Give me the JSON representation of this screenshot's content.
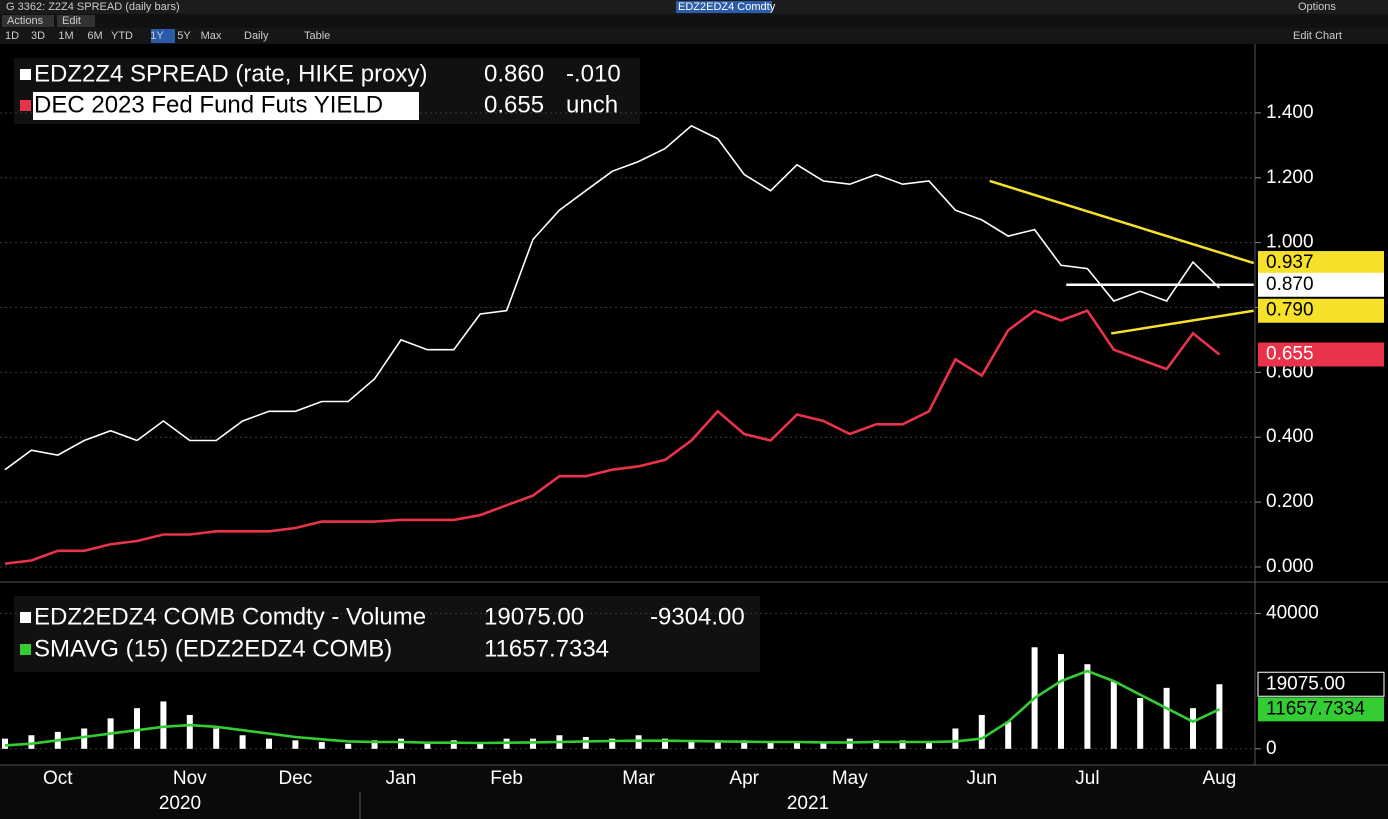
{
  "header": {
    "title": "G 3362: Z2Z4 SPREAD (daily bars)",
    "security": "EDZ2EDZ4 Comdty",
    "options": "Options",
    "menus": [
      "Actions",
      "Edit"
    ],
    "ranges": [
      "1D",
      "3D",
      "1M",
      "6M",
      "YTD",
      "1Y",
      "5Y",
      "Max"
    ],
    "period": "Daily",
    "table": "Table",
    "edit_chart": "Edit Chart"
  },
  "year_labels": [
    "2020",
    "2021"
  ],
  "chart_data": [
    {
      "type": "line",
      "categories": [
        null,
        null,
        "Oct",
        null,
        null,
        null,
        null,
        "Nov",
        null,
        null,
        null,
        "Dec",
        null,
        null,
        null,
        "Jan",
        null,
        null,
        null,
        "Feb",
        null,
        null,
        null,
        null,
        "Mar",
        null,
        null,
        null,
        "Apr",
        null,
        null,
        null,
        "May",
        null,
        null,
        null,
        null,
        "Jun",
        null,
        null,
        null,
        "Jul",
        null,
        null,
        null,
        null,
        "Aug"
      ],
      "ylim": [
        -0.034,
        1.6
      ],
      "yticks": [
        {
          "value": 0,
          "label": "0.000"
        },
        {
          "value": 0.2,
          "label": "0.200"
        },
        {
          "value": 0.4,
          "label": "0.400"
        },
        {
          "value": 0.6,
          "label": "0.600"
        },
        {
          "value": 0.8,
          "label": "0.800"
        },
        {
          "value": 1.0,
          "label": "1.000"
        },
        {
          "value": 1.2,
          "label": "1.200"
        },
        {
          "value": 1.4,
          "label": "1.400"
        }
      ],
      "grid": true,
      "series": [
        {
          "name": "EDZ2Z4 SPREAD (rate, HIKE proxy)",
          "color": "#ffffff",
          "last": {
            "value": 0.86,
            "label": "0.860"
          },
          "change": {
            "value": -0.01,
            "label": "-.010"
          },
          "values": [
            0.3,
            0.36,
            0.345,
            0.39,
            0.42,
            0.39,
            0.45,
            0.39,
            0.39,
            0.45,
            0.48,
            0.48,
            0.51,
            0.51,
            0.58,
            0.7,
            0.67,
            0.67,
            0.78,
            0.79,
            1.01,
            1.1,
            1.16,
            1.22,
            1.25,
            1.29,
            1.36,
            1.32,
            1.21,
            1.16,
            1.24,
            1.19,
            1.18,
            1.21,
            1.18,
            1.19,
            1.1,
            1.07,
            1.02,
            1.04,
            0.93,
            0.92,
            0.82,
            0.85,
            0.82,
            0.94,
            0.86
          ]
        },
        {
          "name": "DEC 2023 Fed Fund Futs YIELD",
          "color": "#e8334a",
          "last": 0.655,
          "change": "unch",
          "right_tag": true,
          "values": [
            0.01,
            0.02,
            0.05,
            0.05,
            0.07,
            0.08,
            0.1,
            0.1,
            0.11,
            0.11,
            0.11,
            0.12,
            0.14,
            0.14,
            0.14,
            0.145,
            0.145,
            0.145,
            0.16,
            0.19,
            0.22,
            0.28,
            0.28,
            0.3,
            0.31,
            0.33,
            0.39,
            0.48,
            0.41,
            0.39,
            0.47,
            0.45,
            0.41,
            0.44,
            0.44,
            0.48,
            0.64,
            0.59,
            0.73,
            0.79,
            0.76,
            0.79,
            0.67,
            0.64,
            0.61,
            0.72,
            0.655
          ]
        }
      ],
      "trendlines": [
        {
          "color": "#f5e02a",
          "x": [
            37.3,
            47.3
          ],
          "start": 1.19,
          "end": {
            "value": 0.937,
            "label": "0.937"
          }
        },
        {
          "color": "#f5e02a",
          "x": [
            41.9,
            47.3
          ],
          "start": 0.72,
          "end": {
            "value": 0.79,
            "label": "0.790"
          }
        },
        {
          "color": "#ffffff",
          "x": [
            40.2,
            47.3
          ],
          "start": 0.87,
          "end": {
            "value": 0.87,
            "label": "0.870"
          }
        }
      ]
    },
    {
      "type": "bar",
      "ylim": [
        -3900,
        48400
      ],
      "yticks": [
        0,
        40000
      ],
      "grid": true,
      "series": [
        {
          "name": "EDZ2EDZ4 COMB Comdty - Volume",
          "color": "#ffffff",
          "last": {
            "value": 19075,
            "label": "19075.00"
          },
          "change": {
            "value": -9304,
            "label": "-9304.00"
          },
          "right_tag": true,
          "values": [
            3000,
            4000,
            5000,
            6000,
            9000,
            12000,
            14000,
            10000,
            6000,
            4000,
            3000,
            2500,
            2000,
            1500,
            2500,
            3000,
            2000,
            2500,
            2000,
            3000,
            3000,
            4000,
            3500,
            3000,
            4000,
            3000,
            2000,
            2000,
            2500,
            2000,
            2000,
            2000,
            3000,
            2500,
            2500,
            2000,
            6000,
            10000,
            8000,
            30000,
            28000,
            25000,
            20000,
            15000,
            18000,
            12000,
            19075
          ]
        },
        {
          "name": "SMAVG (15) (EDZ2EDZ4 COMB)",
          "color": "#33cc33",
          "type": "line",
          "last": 11657.7334,
          "right_tag": true,
          "values": [
            1000,
            1500,
            2500,
            3500,
            4500,
            5500,
            6500,
            7000,
            6500,
            5500,
            4500,
            3500,
            2800,
            2200,
            2000,
            2000,
            1800,
            1800,
            1700,
            1800,
            1900,
            2000,
            2200,
            2300,
            2400,
            2400,
            2300,
            2200,
            2100,
            2000,
            2000,
            1900,
            1900,
            2000,
            2000,
            2000,
            2200,
            3000,
            8000,
            15000,
            20000,
            23000,
            20000,
            16000,
            12000,
            8000,
            11657.7334
          ]
        }
      ]
    }
  ]
}
